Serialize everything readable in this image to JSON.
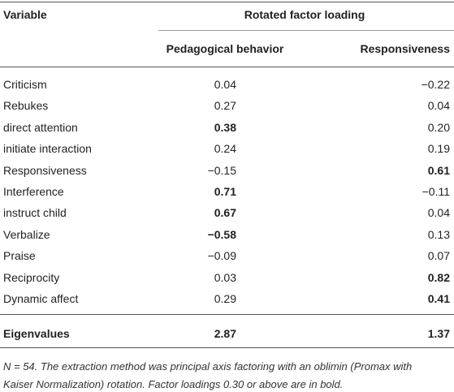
{
  "table": {
    "header": {
      "variable": "Variable",
      "group": "Rotated factor loading",
      "columns": [
        "Pedagogical behavior",
        "Responsiveness"
      ]
    },
    "rows": [
      {
        "variable": "Criticism",
        "values": [
          "0.04",
          "−0.22"
        ],
        "bold": [
          false,
          false
        ]
      },
      {
        "variable": "Rebukes",
        "values": [
          "0.27",
          "0.04"
        ],
        "bold": [
          false,
          false
        ]
      },
      {
        "variable": "direct attention",
        "values": [
          "0.38",
          "0.20"
        ],
        "bold": [
          true,
          false
        ]
      },
      {
        "variable": "initiate interaction",
        "values": [
          "0.24",
          "0.19"
        ],
        "bold": [
          false,
          false
        ]
      },
      {
        "variable": "Responsiveness",
        "values": [
          "−0.15",
          "0.61"
        ],
        "bold": [
          false,
          true
        ]
      },
      {
        "variable": "Interference",
        "values": [
          "0.71",
          "−0.11"
        ],
        "bold": [
          true,
          false
        ]
      },
      {
        "variable": "instruct child",
        "values": [
          "0.67",
          "0.04"
        ],
        "bold": [
          true,
          false
        ]
      },
      {
        "variable": "Verbalize",
        "values": [
          "−0.58",
          "0.13"
        ],
        "bold": [
          true,
          false
        ]
      },
      {
        "variable": "Praise",
        "values": [
          "−0.09",
          "0.07"
        ],
        "bold": [
          false,
          false
        ]
      },
      {
        "variable": "Reciprocity",
        "values": [
          "0.03",
          "0.82"
        ],
        "bold": [
          false,
          true
        ]
      },
      {
        "variable": "Dynamic affect",
        "values": [
          "0.29",
          "0.41"
        ],
        "bold": [
          false,
          true
        ]
      }
    ],
    "eigen": {
      "variable": "Eigenvalues",
      "values": [
        "2.87",
        "1.37"
      ]
    },
    "note": [
      "N = 54. The extraction method was principal axis factoring with an oblimin (Promax with",
      "Kaiser Normalization) rotation. Factor loadings 0.30 or above are in bold."
    ]
  }
}
